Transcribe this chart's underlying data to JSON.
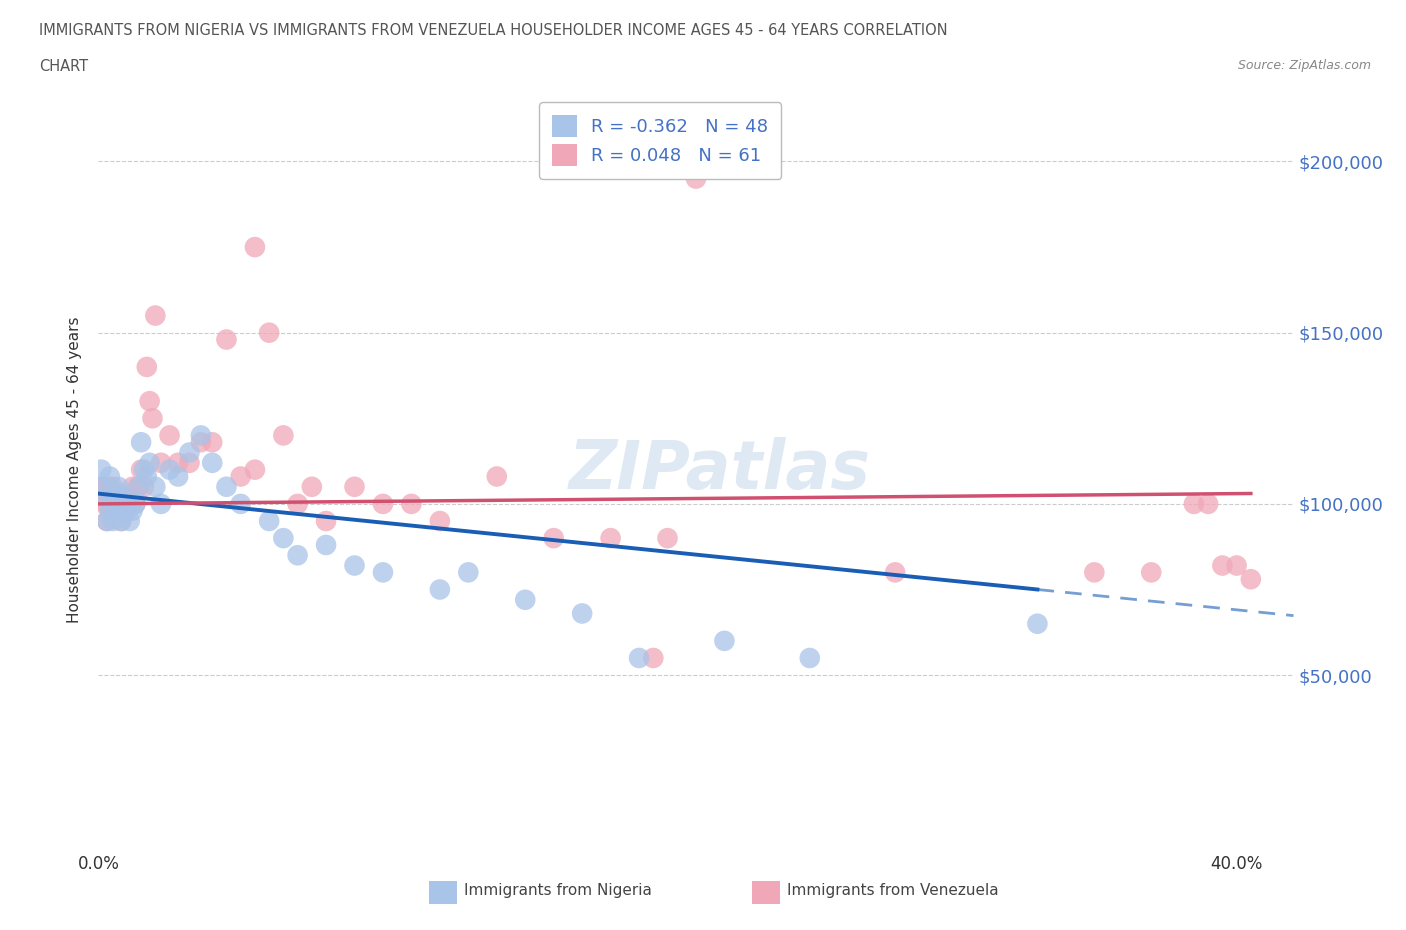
{
  "title_line1": "IMMIGRANTS FROM NIGERIA VS IMMIGRANTS FROM VENEZUELA HOUSEHOLDER INCOME AGES 45 - 64 YEARS CORRELATION",
  "title_line2": "CHART",
  "source": "Source: ZipAtlas.com",
  "ylabel": "Householder Income Ages 45 - 64 years",
  "nigeria_color": "#a8c4e8",
  "venezuela_color": "#f0a8b8",
  "nigeria_R": -0.362,
  "nigeria_N": 48,
  "venezuela_R": 0.048,
  "venezuela_N": 61,
  "nigeria_line_color": "#1a5db5",
  "venezuela_line_color": "#d05070",
  "watermark": "ZIPatlas",
  "xlim": [
    0.0,
    0.42
  ],
  "ylim": [
    0,
    220000
  ],
  "nigeria_x": [
    0.001,
    0.002,
    0.003,
    0.003,
    0.004,
    0.004,
    0.005,
    0.005,
    0.006,
    0.006,
    0.007,
    0.007,
    0.008,
    0.008,
    0.009,
    0.009,
    0.01,
    0.011,
    0.012,
    0.013,
    0.014,
    0.015,
    0.016,
    0.017,
    0.018,
    0.02,
    0.022,
    0.025,
    0.028,
    0.032,
    0.036,
    0.04,
    0.045,
    0.05,
    0.06,
    0.065,
    0.07,
    0.08,
    0.09,
    0.1,
    0.12,
    0.13,
    0.15,
    0.17,
    0.19,
    0.22,
    0.25,
    0.33
  ],
  "nigeria_y": [
    110000,
    105000,
    102000,
    95000,
    108000,
    98000,
    100000,
    95000,
    102000,
    98000,
    105000,
    100000,
    103000,
    95000,
    100000,
    98000,
    100000,
    95000,
    98000,
    100000,
    105000,
    118000,
    110000,
    108000,
    112000,
    105000,
    100000,
    110000,
    108000,
    115000,
    120000,
    112000,
    105000,
    100000,
    95000,
    90000,
    85000,
    88000,
    82000,
    80000,
    75000,
    80000,
    72000,
    68000,
    55000,
    60000,
    55000,
    65000
  ],
  "venezuela_x": [
    0.001,
    0.002,
    0.002,
    0.003,
    0.003,
    0.004,
    0.004,
    0.005,
    0.005,
    0.006,
    0.006,
    0.007,
    0.007,
    0.008,
    0.008,
    0.009,
    0.01,
    0.01,
    0.011,
    0.012,
    0.013,
    0.014,
    0.015,
    0.016,
    0.017,
    0.018,
    0.019,
    0.02,
    0.022,
    0.025,
    0.028,
    0.032,
    0.036,
    0.04,
    0.045,
    0.05,
    0.055,
    0.06,
    0.07,
    0.08,
    0.09,
    0.1,
    0.11,
    0.12,
    0.14,
    0.16,
    0.18,
    0.2,
    0.21,
    0.195,
    0.055,
    0.065,
    0.075,
    0.28,
    0.35,
    0.37,
    0.385,
    0.39,
    0.395,
    0.4,
    0.405
  ],
  "venezuela_y": [
    105000,
    105000,
    100000,
    100000,
    95000,
    105000,
    100000,
    105000,
    98000,
    102000,
    100000,
    100000,
    98000,
    100000,
    95000,
    102000,
    100000,
    98000,
    102000,
    105000,
    100000,
    105000,
    110000,
    105000,
    140000,
    130000,
    125000,
    155000,
    112000,
    120000,
    112000,
    112000,
    118000,
    118000,
    148000,
    108000,
    110000,
    150000,
    100000,
    95000,
    105000,
    100000,
    100000,
    95000,
    108000,
    90000,
    90000,
    90000,
    195000,
    55000,
    175000,
    120000,
    105000,
    80000,
    80000,
    80000,
    100000,
    100000,
    82000,
    82000,
    78000
  ]
}
